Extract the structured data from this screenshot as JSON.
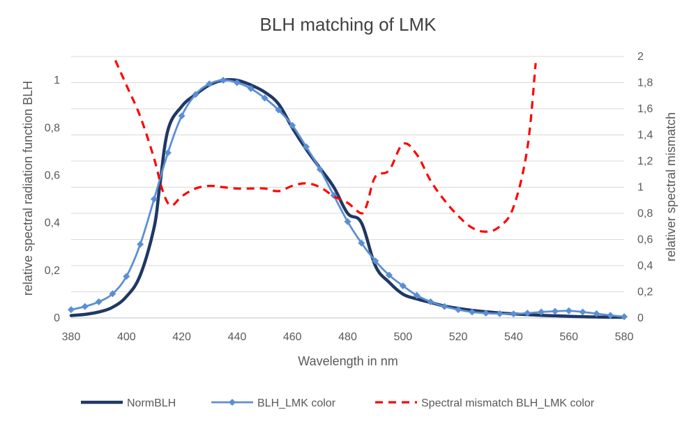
{
  "chart_data": {
    "type": "line",
    "title": "BLH matching of LMK",
    "xlabel": "Wavelength in nm",
    "ylabel": "relative spectral radiation function BLH",
    "y2label": "relativer spectral mismatch",
    "xlim": [
      380,
      580
    ],
    "ylim": [
      0,
      1.1
    ],
    "y2lim": [
      0,
      2
    ],
    "x_ticks": [
      380,
      400,
      420,
      440,
      460,
      480,
      500,
      520,
      540,
      560,
      580
    ],
    "x_tick_labels": [
      "380",
      "400",
      "420",
      "440",
      "460",
      "480",
      "500",
      "520",
      "540",
      "560",
      "580"
    ],
    "y_ticks": [
      0,
      0.2,
      0.4,
      0.6,
      0.8,
      1
    ],
    "y_tick_labels": [
      "0",
      "0,2",
      "0,4",
      "0,6",
      "0,8",
      "1"
    ],
    "y2_ticks": [
      0,
      0.2,
      0.4,
      0.6,
      0.8,
      1,
      1.2,
      1.4,
      1.6,
      1.8,
      2
    ],
    "y2_tick_labels": [
      "0",
      "0,2",
      "0,4",
      "0,6",
      "0,8",
      "1",
      "1,2",
      "1,4",
      "1,6",
      "1,8",
      "2"
    ],
    "grid": true,
    "legend_position": "bottom",
    "series": [
      {
        "name": "NormBLH",
        "axis": "left",
        "color": "#1f3864",
        "style": "solid-thick",
        "x": [
          380,
          385,
          390,
          395,
          400,
          405,
          410,
          412,
          415,
          420,
          425,
          430,
          435,
          440,
          445,
          450,
          455,
          460,
          465,
          470,
          475,
          480,
          485,
          490,
          495,
          500,
          505,
          510,
          515,
          520,
          525,
          530,
          535,
          540,
          545,
          550,
          555,
          560,
          565,
          570,
          575,
          580
        ],
        "y": [
          0.01,
          0.015,
          0.025,
          0.045,
          0.09,
          0.18,
          0.38,
          0.55,
          0.79,
          0.89,
          0.94,
          0.98,
          1.0,
          1.0,
          0.98,
          0.95,
          0.9,
          0.8,
          0.71,
          0.63,
          0.55,
          0.44,
          0.4,
          0.22,
          0.15,
          0.1,
          0.08,
          0.065,
          0.05,
          0.04,
          0.032,
          0.026,
          0.021,
          0.017,
          0.014,
          0.011,
          0.009,
          0.007,
          0.005,
          0.004,
          0.003,
          0.003
        ]
      },
      {
        "name": "BLH_LMK color",
        "axis": "left",
        "color": "#5b8fd4",
        "style": "solid-diamonds",
        "x": [
          380,
          385,
          390,
          395,
          400,
          405,
          410,
          415,
          420,
          425,
          430,
          435,
          440,
          445,
          450,
          455,
          460,
          465,
          470,
          475,
          480,
          485,
          490,
          495,
          500,
          505,
          510,
          515,
          520,
          525,
          530,
          535,
          540,
          545,
          550,
          555,
          560,
          565,
          570,
          575,
          580
        ],
        "y": [
          0.035,
          0.048,
          0.068,
          0.102,
          0.175,
          0.31,
          0.5,
          0.695,
          0.85,
          0.94,
          0.985,
          1.0,
          0.99,
          0.965,
          0.925,
          0.875,
          0.81,
          0.72,
          0.625,
          0.515,
          0.405,
          0.315,
          0.24,
          0.18,
          0.135,
          0.095,
          0.068,
          0.048,
          0.035,
          0.025,
          0.02,
          0.018,
          0.017,
          0.02,
          0.025,
          0.028,
          0.03,
          0.025,
          0.018,
          0.011,
          0.005
        ]
      },
      {
        "name": "Spectral mismatch BLH_LMK color",
        "axis": "right",
        "color": "#ff0000",
        "style": "dashed",
        "x": [
          396,
          400,
          405,
          410,
          413,
          416,
          420,
          425,
          430,
          435,
          440,
          445,
          450,
          455,
          460,
          465,
          470,
          475,
          480,
          485,
          487,
          490,
          495,
          500,
          505,
          510,
          515,
          520,
          525,
          530,
          535,
          540,
          545,
          548
        ],
        "y": [
          1.97,
          1.78,
          1.54,
          1.22,
          0.98,
          0.86,
          0.93,
          0.99,
          1.01,
          1.0,
          0.99,
          0.99,
          0.99,
          0.97,
          1.01,
          1.03,
          1.0,
          0.93,
          0.88,
          0.8,
          0.87,
          1.08,
          1.13,
          1.33,
          1.25,
          1.05,
          0.9,
          0.78,
          0.69,
          0.66,
          0.7,
          0.85,
          1.3,
          1.95
        ]
      }
    ]
  }
}
